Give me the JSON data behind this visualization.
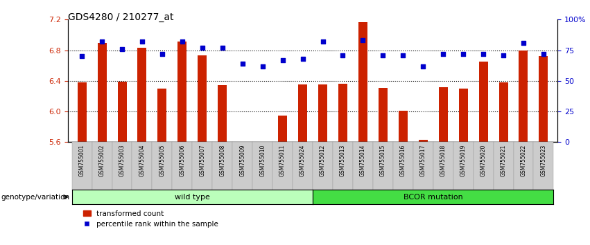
{
  "title": "GDS4280 / 210277_at",
  "samples": [
    "GSM755001",
    "GSM755002",
    "GSM755003",
    "GSM755004",
    "GSM755005",
    "GSM755006",
    "GSM755007",
    "GSM755008",
    "GSM755009",
    "GSM755010",
    "GSM755011",
    "GSM755024",
    "GSM755012",
    "GSM755013",
    "GSM755014",
    "GSM755015",
    "GSM755016",
    "GSM755017",
    "GSM755018",
    "GSM755019",
    "GSM755020",
    "GSM755021",
    "GSM755022",
    "GSM755023"
  ],
  "transformed_count": [
    6.38,
    6.9,
    6.39,
    6.83,
    6.3,
    6.91,
    6.73,
    6.34,
    5.6,
    5.58,
    5.95,
    6.35,
    6.35,
    6.36,
    7.17,
    6.31,
    6.01,
    5.63,
    6.32,
    6.3,
    6.65,
    6.38,
    6.8,
    6.72
  ],
  "percentile_rank": [
    70,
    82,
    76,
    82,
    72,
    82,
    77,
    77,
    64,
    62,
    67,
    68,
    82,
    71,
    83,
    71,
    71,
    62,
    72,
    72,
    72,
    71,
    81,
    72
  ],
  "ylim_left": [
    5.6,
    7.2
  ],
  "ylim_right": [
    0,
    100
  ],
  "yticks_left": [
    5.6,
    6.0,
    6.4,
    6.8,
    7.2
  ],
  "yticks_right": [
    0,
    25,
    50,
    75,
    100
  ],
  "ytick_labels_right": [
    "0",
    "25",
    "50",
    "75",
    "100%"
  ],
  "bar_color": "#cc2200",
  "marker_color": "#0000cc",
  "wild_type_color": "#bbffbb",
  "bcor_color": "#44dd44",
  "dotted_line_values": [
    6.0,
    6.4,
    6.8
  ],
  "legend_bar_label": "transformed count",
  "legend_marker_label": "percentile rank within the sample",
  "group_label_wild": "wild type",
  "group_label_bcor": "BCOR mutation",
  "genotype_label": "genotype/variation",
  "ticklabel_bg": "#cccccc",
  "n_wild": 12,
  "n_bcor": 12
}
